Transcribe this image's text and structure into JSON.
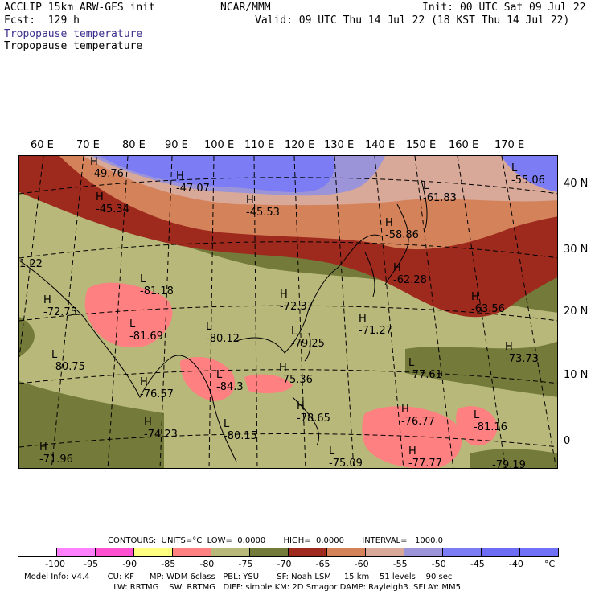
{
  "header": {
    "line1_left": "ACCLIP 15km ARW-GFS init",
    "line1_center": "NCAR/MMM",
    "line1_right": "Init: 00 UTC Sat 09 Jul 22",
    "line2_left": "Fcst:  129 h",
    "line2_right": "Valid: 09 UTC Thu 14 Jul 22 (18 KST Thu 14 Jul 22)",
    "field_title_1": "Tropopause temperature",
    "field_title_2": "Tropopause temperature"
  },
  "map": {
    "lon_labels": [
      "60 E",
      "70 E",
      "80 E",
      "90 E",
      "100 E",
      "110 E",
      "120 E",
      "130 E",
      "140 E",
      "150 E",
      "160 E",
      "170 E"
    ],
    "lat_labels": [
      "40 N",
      "30 N",
      "20 N",
      "10 N",
      "0"
    ],
    "extrema": [
      {
        "type": "H",
        "value": "-49.76"
      },
      {
        "type": "H",
        "value": "-47.07"
      },
      {
        "type": "H",
        "value": "-45.34"
      },
      {
        "type": "H",
        "value": "-45.53"
      },
      {
        "type": "L",
        "value": "-61.83"
      },
      {
        "type": "L",
        "value": "-55.06"
      },
      {
        "type": "H",
        "value": "-58.86"
      },
      {
        "type": "H",
        "value": "-62.28"
      },
      {
        "type": "H",
        "value": "-63.56"
      },
      {
        "type": "",
        "value": "1.22"
      },
      {
        "type": "L",
        "value": "-81.18"
      },
      {
        "type": "H",
        "value": "-72.75"
      },
      {
        "type": "H",
        "value": "-72.37"
      },
      {
        "type": "H",
        "value": "-71.27"
      },
      {
        "type": "L",
        "value": "-81.69"
      },
      {
        "type": "L",
        "value": "-80.12"
      },
      {
        "type": "L",
        "value": "-79.25"
      },
      {
        "type": "H",
        "value": "-73.73"
      },
      {
        "type": "L",
        "value": "-80.75"
      },
      {
        "type": "H",
        "value": "-75.36"
      },
      {
        "type": "L",
        "value": "-77.61"
      },
      {
        "type": "H",
        "value": "-76.57"
      },
      {
        "type": "L",
        "value": "-84.3"
      },
      {
        "type": "H",
        "value": "-76.77"
      },
      {
        "type": "H",
        "value": "-78.65"
      },
      {
        "type": "L",
        "value": "-81.16"
      },
      {
        "type": "H",
        "value": "-74.23"
      },
      {
        "type": "L",
        "value": "-80.15"
      },
      {
        "type": "H",
        "value": "-71.96"
      },
      {
        "type": "L",
        "value": "-75.09"
      },
      {
        "type": "H",
        "value": "-77.77"
      },
      {
        "type": "",
        "value": "-79.19"
      }
    ]
  },
  "contours_line": "CONTOURS:  UNITS=°C  LOW=  0.0000       HIGH=  0.0000       INTERVAL=   1000.0",
  "colorbar": {
    "colors": [
      "#ffffff",
      "#ff80ff",
      "#ff50d0",
      "#ffff80",
      "#ff8080",
      "#b8b87a",
      "#737a3a",
      "#9e2a1e",
      "#d4825a",
      "#d8a898",
      "#9c94d8",
      "#7c7cf4",
      "#6c6cf4",
      "#7070f8"
    ],
    "ticks": [
      "-100",
      "-95",
      "-90",
      "-85",
      "-80",
      "-75",
      "-70",
      "-65",
      "-60",
      "-55",
      "-50",
      "-45",
      "-40",
      "°C"
    ]
  },
  "footer": {
    "line1": "Model Info: V4.4       CU: KF      MP: WDM 6class   PBL: YSU       SF: Noah LSM     15 km    51 levels    90 sec",
    "line2": "                                   LW: RRTMG    SW: RRTMG   DIFF: simple KM: 2D Smagor DAMP: Rayleigh3  SFLAY: MM5"
  }
}
